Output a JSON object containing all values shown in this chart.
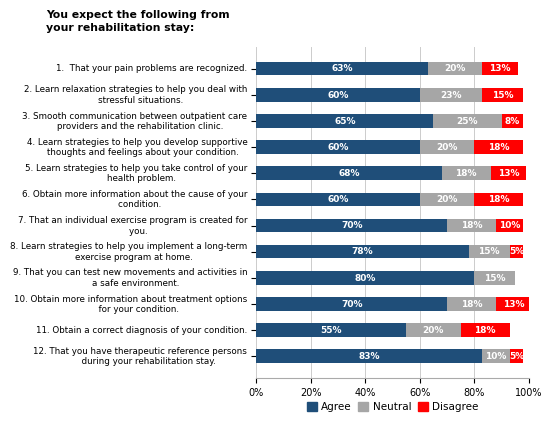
{
  "title_line1": "You expect the following from",
  "title_line2": "your rehabilitation stay:",
  "categories": [
    "1.  That your pain problems are recognized.",
    "2. Learn relaxation strategies to help you deal with\n    stressful situations.",
    "3. Smooth communication between outpatient care\n    providers and the rehabilitation clinic.",
    "4. Learn strategies to help you develop supportive\n    thoughts and feelings about your condition.",
    "5. Learn strategies to help you take control of your\n    health problem.",
    "6. Obtain more information about the cause of your\n    condition.",
    "7. That an individual exercise program is created for\n    you.",
    "8. Learn strategies to help you implement a long-term\n    exercise program at home.",
    "9. That you can test new movements and activities in\n    a safe environment.",
    "10. Obtain more information about treatment options\n      for your condition.",
    "11. Obtain a correct diagnosis of your condition.",
    "12. That you have therapeutic reference persons\n      during your rehabilitation stay."
  ],
  "agree": [
    63,
    60,
    65,
    60,
    68,
    60,
    70,
    78,
    80,
    70,
    55,
    83
  ],
  "neutral": [
    20,
    23,
    25,
    20,
    18,
    20,
    18,
    15,
    15,
    18,
    20,
    10
  ],
  "disagree": [
    13,
    15,
    8,
    18,
    13,
    18,
    10,
    5,
    0,
    13,
    18,
    5
  ],
  "agree_color": "#1F4E79",
  "neutral_color": "#A6A6A6",
  "disagree_color": "#FF0000",
  "bar_height": 0.52,
  "xlim": [
    0,
    100
  ],
  "xticks": [
    0,
    20,
    40,
    60,
    80,
    100
  ],
  "xticklabels": [
    "0%",
    "20%",
    "40%",
    "60%",
    "80%",
    "100%"
  ],
  "legend_labels": [
    "Agree",
    "Neutral",
    "Disagree"
  ],
  "background_color": "#FFFFFF",
  "grid_color": "#CCCCCC",
  "label_fontsize": 6.3,
  "tick_fontsize": 7.0,
  "bar_label_fontsize": 6.5,
  "title_fontsize": 7.8
}
